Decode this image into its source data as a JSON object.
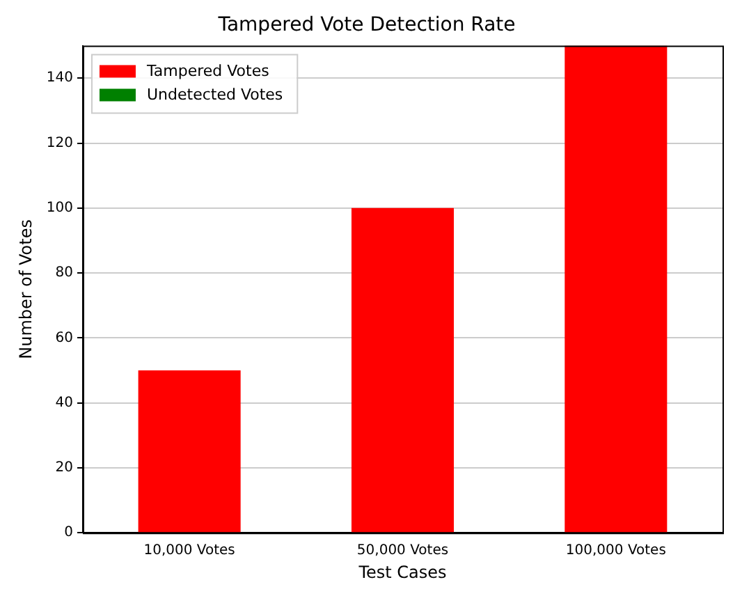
{
  "chart_data": {
    "type": "bar",
    "title": "Tampered Vote Detection Rate",
    "xlabel": "Test Cases",
    "ylabel": "Number of Votes",
    "categories": [
      "10,000 Votes",
      "50,000 Votes",
      "100,000 Votes"
    ],
    "series": [
      {
        "name": "Tampered Votes",
        "color": "#ff0000",
        "values": [
          50,
          100,
          150
        ]
      },
      {
        "name": "Undetected Votes",
        "color": "#008000",
        "values": [
          0,
          0,
          0
        ]
      }
    ],
    "stacked": true,
    "ylim": [
      0,
      150
    ],
    "yticks": [
      0,
      20,
      40,
      60,
      80,
      100,
      120,
      140
    ],
    "grid": "y",
    "legend": "top left"
  }
}
